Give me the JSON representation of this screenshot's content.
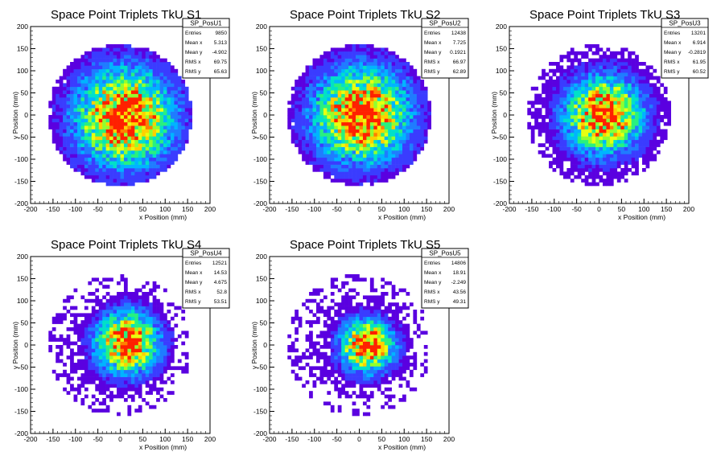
{
  "chart_data": [
    {
      "type": "heatmap",
      "title": "Space Point Triplets TkU S1",
      "xlabel": "x Position (mm)",
      "ylabel": "y Position (mm)",
      "xlim": [
        -200,
        200
      ],
      "ylim": [
        -200,
        200
      ],
      "xticks": [
        "-200",
        "-150",
        "-100",
        "-50",
        "0",
        "50",
        "100",
        "150",
        "200"
      ],
      "yticks": [
        "-200",
        "-150",
        "-100",
        "-50",
        "0",
        "50",
        "100",
        "150",
        "200"
      ],
      "radius": 160,
      "center": [
        10,
        -5
      ],
      "spread": 70,
      "stats": {
        "name": "SP_PosU1",
        "rows": [
          [
            "Entries",
            "9850"
          ],
          [
            "Mean x",
            "5.313"
          ],
          [
            "Mean y",
            "-4.902"
          ],
          [
            "RMS x",
            "69.75"
          ],
          [
            "RMS y",
            "65.63"
          ]
        ]
      }
    },
    {
      "type": "heatmap",
      "title": "Space Point Triplets TkU S2",
      "xlabel": "x Position (mm)",
      "ylabel": "y Position (mm)",
      "xlim": [
        -200,
        200
      ],
      "ylim": [
        -200,
        200
      ],
      "xticks": [
        "-200",
        "-150",
        "-100",
        "-50",
        "0",
        "50",
        "100",
        "150",
        "200"
      ],
      "yticks": [
        "-200",
        "-150",
        "-100",
        "-50",
        "0",
        "50",
        "100",
        "150",
        "200"
      ],
      "radius": 160,
      "center": [
        5,
        0
      ],
      "spread": 68,
      "stats": {
        "name": "SP_PosU2",
        "rows": [
          [
            "Entries",
            "12438"
          ],
          [
            "Mean x",
            "7.725"
          ],
          [
            "Mean y",
            "0.1921"
          ],
          [
            "RMS x",
            "66.97"
          ],
          [
            "RMS y",
            "62.89"
          ]
        ]
      }
    },
    {
      "type": "heatmap",
      "title": "Space Point Triplets TkU S3",
      "xlabel": "x Position (mm)",
      "ylabel": "y Position (mm)",
      "xlim": [
        -200,
        200
      ],
      "ylim": [
        -200,
        200
      ],
      "xticks": [
        "-200",
        "-150",
        "-100",
        "-50",
        "0",
        "50",
        "100",
        "150",
        "200"
      ],
      "yticks": [
        "-200",
        "-150",
        "-100",
        "-50",
        "0",
        "50",
        "100",
        "150",
        "200"
      ],
      "radius": 160,
      "center": [
        10,
        0
      ],
      "spread": 55,
      "stats": {
        "name": "SP_PosU3",
        "rows": [
          [
            "Entries",
            "13201"
          ],
          [
            "Mean x",
            "6.914"
          ],
          [
            "Mean y",
            "-0.2819"
          ],
          [
            "RMS x",
            "61.95"
          ],
          [
            "RMS y",
            "60.52"
          ]
        ]
      }
    },
    {
      "type": "heatmap",
      "title": "Space Point Triplets TkU S4",
      "xlabel": "x Position (mm)",
      "ylabel": "y Position (mm)",
      "xlim": [
        -200,
        200
      ],
      "ylim": [
        -200,
        200
      ],
      "xticks": [
        "-200",
        "-150",
        "-100",
        "-50",
        "0",
        "50",
        "100",
        "150",
        "200"
      ],
      "yticks": [
        "-200",
        "-150",
        "-100",
        "-50",
        "0",
        "50",
        "100",
        "150",
        "200"
      ],
      "radius": 160,
      "center": [
        15,
        5
      ],
      "spread": 45,
      "stats": {
        "name": "SP_PosU4",
        "rows": [
          [
            "Entries",
            "12521"
          ],
          [
            "Mean x",
            "14.53"
          ],
          [
            "Mean y",
            "4.675"
          ],
          [
            "RMS x",
            "52.8"
          ],
          [
            "RMS y",
            "53.51"
          ]
        ]
      }
    },
    {
      "type": "heatmap",
      "title": "Space Point Triplets TkU S5",
      "xlabel": "x Position (mm)",
      "ylabel": "y Position (mm)",
      "xlim": [
        -200,
        200
      ],
      "ylim": [
        -200,
        200
      ],
      "xticks": [
        "-200",
        "-150",
        "-100",
        "-50",
        "0",
        "50",
        "100",
        "150",
        "200"
      ],
      "yticks": [
        "-200",
        "-150",
        "-100",
        "-50",
        "0",
        "50",
        "100",
        "150",
        "200"
      ],
      "radius": 160,
      "center": [
        18,
        -2
      ],
      "spread": 38,
      "stats": {
        "name": "SP_PosU5",
        "rows": [
          [
            "Entries",
            "14806"
          ],
          [
            "Mean x",
            "18.91"
          ],
          [
            "Mean y",
            "-2.249"
          ],
          [
            "RMS x",
            "43.56"
          ],
          [
            "RMS y",
            "49.31"
          ]
        ]
      }
    }
  ],
  "palette": [
    "#5a00e0",
    "#3a3cff",
    "#1f7cff",
    "#00b4ff",
    "#00e0c8",
    "#28f080",
    "#90ff30",
    "#e8ff10",
    "#ffd000",
    "#ff8000",
    "#ff2000"
  ]
}
